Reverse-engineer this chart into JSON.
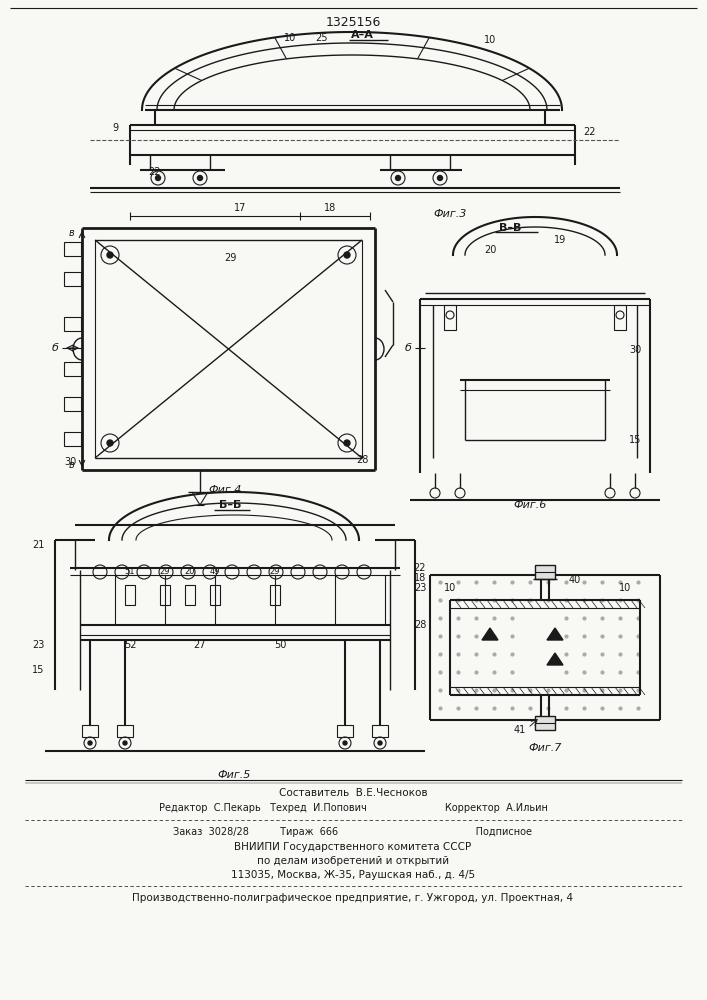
{
  "bg_color": "#f8f8f5",
  "line_color": "#1a1a1a",
  "patent_number": "1325156",
  "fig3_label": "Фиг.3",
  "fig4_label": "Фиг.4",
  "fig5_label": "Фиг.5",
  "fig6_label": "Фиг.6",
  "fig7_label": "Фиг.7",
  "footer_lines": [
    "Составитель  В.Е.Чесноков",
    "Редактор  С.Пекарь   Техред  И.Попович                         Корректор  А.Ильин",
    "Заказ  3028/28          Тираж  666                                            Подписное",
    "ВНИИПИ Государственного комитета СССР",
    "по делам изобретений и открытий",
    "113035, Москва, Ж-35, Раушская наб., д. 4/5",
    "Производственно-полиграфическое предприятие, г. Ужгород, ул. Проектная, 4"
  ]
}
